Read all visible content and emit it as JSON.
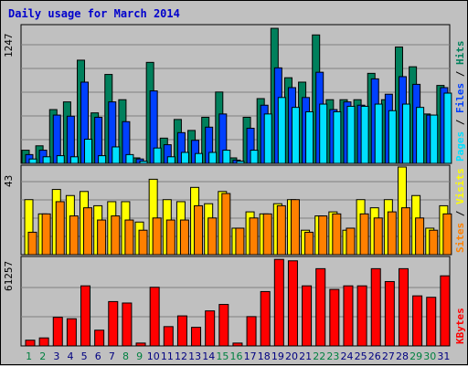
{
  "title": "Daily usage for March 2014",
  "colors": {
    "hits": "#00805c",
    "files": "#0040ff",
    "pages": "#00e0ff",
    "visits": "#ffff00",
    "sites": "#ff8000",
    "kbytes": "#ff0000",
    "weekend_day": "#008040",
    "weekday": "#000080"
  },
  "scales": {
    "top": "1247",
    "middle": "43",
    "bottom": "61257"
  },
  "legends": {
    "top": {
      "pages": "Pages",
      "files": "Files",
      "hits": "Hits",
      "sep": " / "
    },
    "middle": {
      "sites": "Sites",
      "visits": "Visits",
      "sep": " / "
    },
    "bottom": {
      "kbytes": "KBytes"
    }
  },
  "chart_data": {
    "type": "bar",
    "categories": [
      "1",
      "2",
      "3",
      "4",
      "5",
      "6",
      "7",
      "8",
      "9",
      "10",
      "11",
      "12",
      "13",
      "14",
      "15",
      "16",
      "17",
      "18",
      "19",
      "20",
      "21",
      "22",
      "23",
      "24",
      "25",
      "26",
      "27",
      "28",
      "29",
      "30",
      "31"
    ],
    "weekend_days": [
      "1",
      "2",
      "8",
      "9",
      "15",
      "16",
      "22",
      "23",
      "29",
      "30"
    ],
    "panels": [
      {
        "name": "top",
        "ymax": 1247,
        "series": [
          {
            "name": "Hits",
            "values": [
              120,
              160,
              490,
              560,
              940,
              460,
              810,
              580,
              50,
              920,
              230,
              400,
              300,
              420,
              650,
              50,
              420,
              590,
              1230,
              780,
              740,
              1170,
              580,
              580,
              580,
              820,
              580,
              1060,
              880,
              450,
              710
            ]
          },
          {
            "name": "Files",
            "values": [
              80,
              120,
              440,
              430,
              740,
              420,
              560,
              380,
              40,
              660,
              170,
              280,
              210,
              330,
              450,
              30,
              320,
              530,
              870,
              690,
              600,
              830,
              490,
              560,
              530,
              770,
              630,
              790,
              720,
              440,
              690
            ]
          },
          {
            "name": "Pages",
            "values": [
              40,
              60,
              70,
              60,
              220,
              70,
              150,
              80,
              20,
              140,
              60,
              100,
              90,
              100,
              120,
              20,
              120,
              450,
              600,
              510,
              470,
              540,
              470,
              520,
              520,
              540,
              480,
              540,
              510,
              440,
              640
            ]
          }
        ]
      },
      {
        "name": "middle",
        "ymax": 43,
        "series": [
          {
            "name": "Visits",
            "values": [
              27,
              20,
              32,
              29,
              31,
              24,
              26,
              26,
              16,
              37,
              27,
              26,
              33,
              25,
              31,
              13,
              21,
              20,
              25,
              27,
              12,
              19,
              21,
              12,
              27,
              23,
              27,
              43,
              29,
              13,
              24
            ]
          },
          {
            "name": "Sites",
            "values": [
              11,
              20,
              26,
              19,
              23,
              17,
              19,
              17,
              12,
              18,
              17,
              17,
              24,
              18,
              30,
              13,
              18,
              20,
              24,
              27,
              11,
              19,
              20,
              13,
              20,
              18,
              21,
              23,
              18,
              12,
              20
            ]
          }
        ]
      },
      {
        "name": "bottom",
        "ymax": 61257,
        "series": [
          {
            "name": "KBytes",
            "values": [
              4000,
              5600,
              20000,
              19000,
              42000,
              11000,
              31000,
              30000,
              2000,
              41000,
              13500,
              21000,
              13000,
              24500,
              29000,
              2000,
              20500,
              38000,
              60500,
              59500,
              42000,
              54000,
              39500,
              42000,
              42000,
              54000,
              45000,
              54000,
              35000,
              34000,
              49000
            ]
          }
        ]
      }
    ]
  }
}
